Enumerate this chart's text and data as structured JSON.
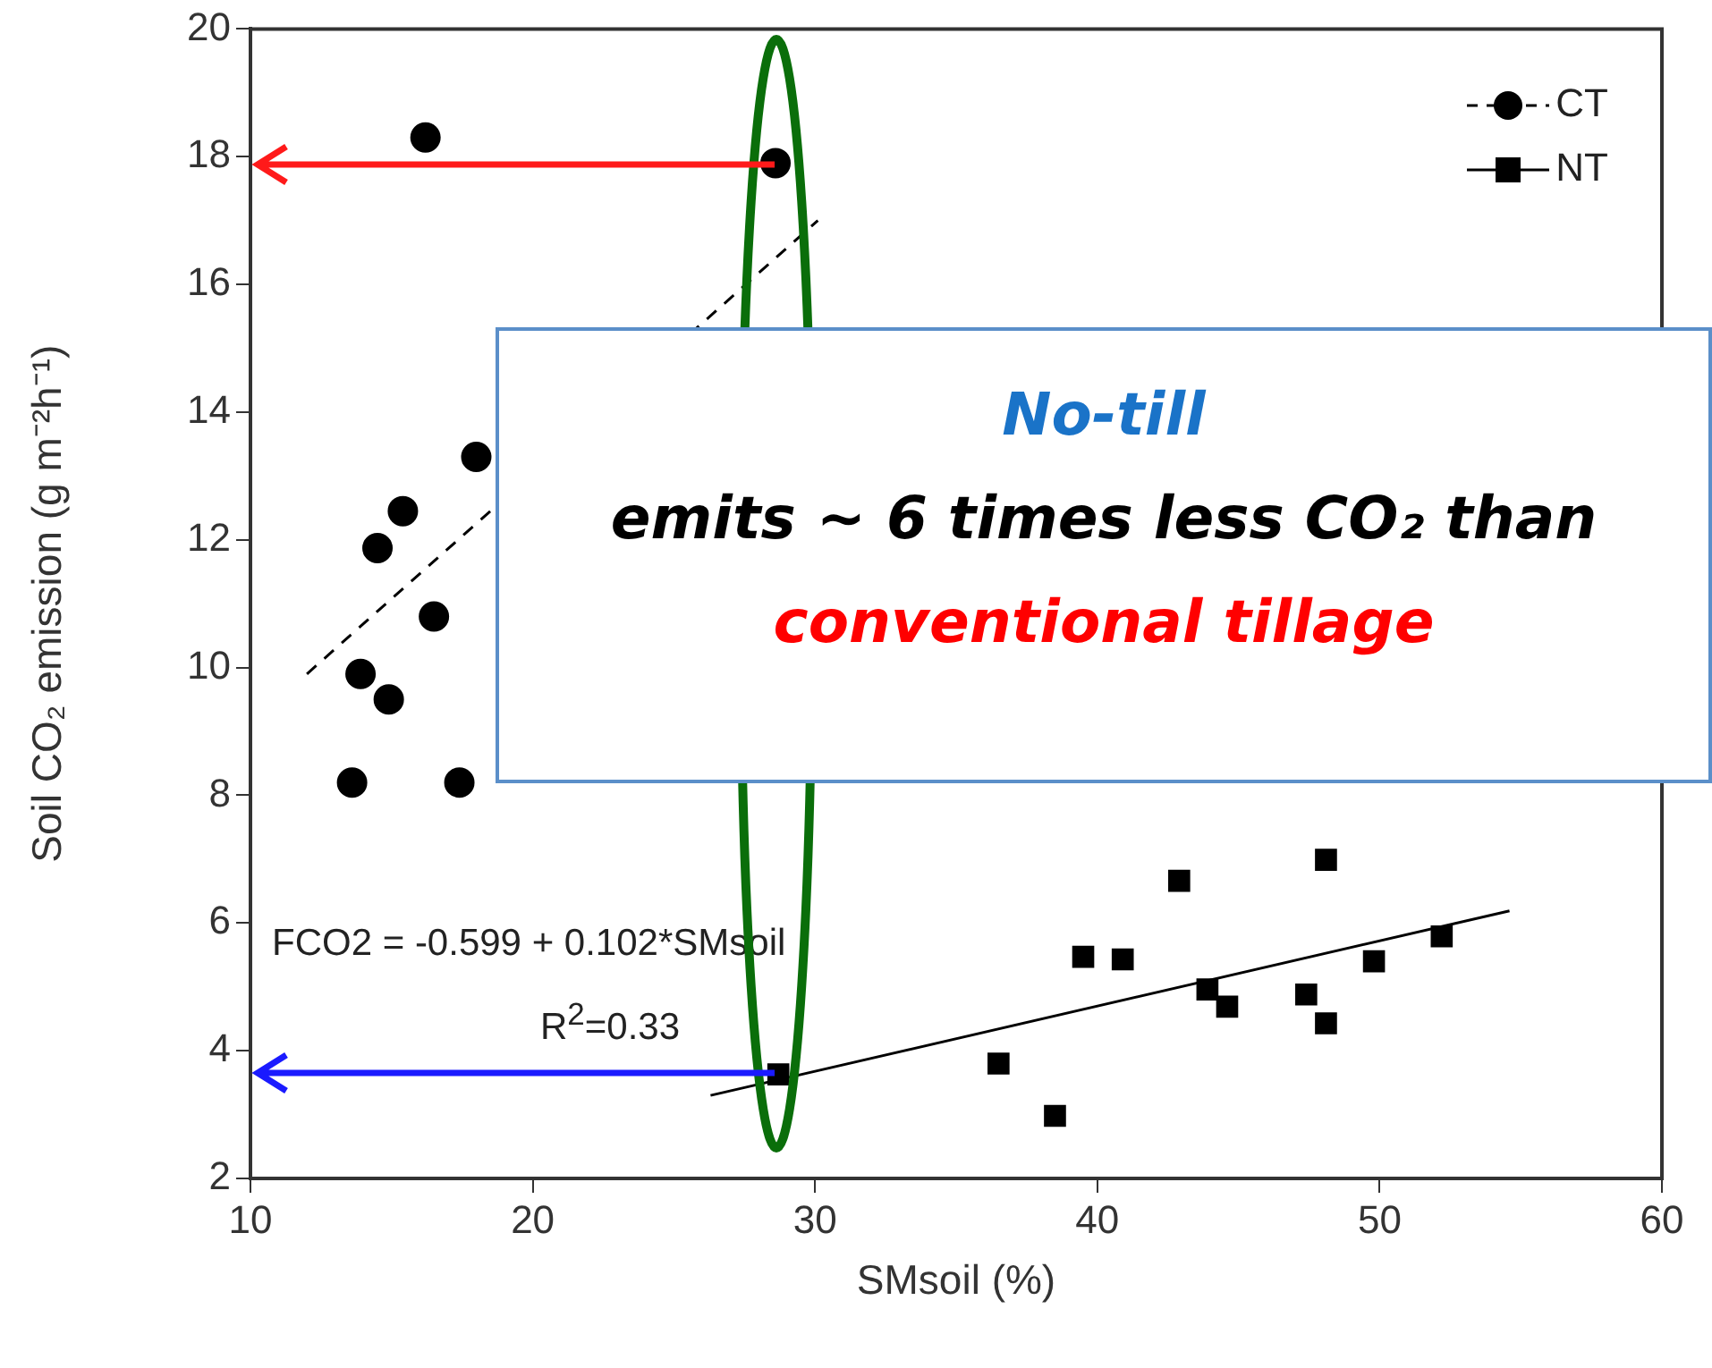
{
  "chart_data": {
    "type": "scatter",
    "xlabel": "SMsoil (%)",
    "ylabel": "Soil CO₂ emission (g m⁻²h⁻¹)",
    "xlim": [
      10,
      60
    ],
    "xticks": [
      10,
      20,
      30,
      40,
      50,
      60
    ],
    "ylim": [
      2,
      20
    ],
    "yticks": [
      2,
      4,
      6,
      8,
      10,
      12,
      14,
      16,
      18,
      20
    ],
    "grid": false,
    "legend": "top right",
    "series": [
      {
        "name": "CT",
        "marker": "circle",
        "color": "#000000",
        "x": [
          16.2,
          28.6,
          18.0,
          15.4,
          14.5,
          16.5,
          13.9,
          14.9,
          13.6,
          17.4
        ],
        "values": [
          18.3,
          17.9,
          13.3,
          12.45,
          11.87,
          10.8,
          9.9,
          9.5,
          8.2,
          8.2
        ]
      },
      {
        "type": "line",
        "marker": "none",
        "line_style": "dashed",
        "color": "#000000",
        "x": [
          12.0,
          30.1
        ],
        "values": [
          9.9,
          17.0
        ]
      },
      {
        "name": "NT",
        "marker": "square",
        "color": "#000000",
        "x": [
          28.7,
          36.5,
          38.5,
          39.5,
          40.9,
          42.9,
          43.9,
          44.6,
          48.1,
          47.4,
          48.1,
          49.8,
          52.2
        ],
        "values": [
          3.63,
          3.8,
          2.98,
          5.47,
          5.43,
          6.66,
          4.96,
          4.69,
          6.99,
          4.88,
          4.43,
          5.4,
          5.79
        ]
      },
      {
        "type": "line",
        "marker": "none",
        "line_style": "solid",
        "color": "#000000",
        "x": [
          26.3,
          54.6
        ],
        "values": [
          3.3,
          6.19
        ]
      }
    ],
    "annotations": [
      "FCO2 = -0.599 + 0.102*SMsoil",
      "R$^{2}$=0.33",
      "No-till",
      "emits ~ 6 times less CO₂ than",
      "conventional tillage"
    ]
  }
}
